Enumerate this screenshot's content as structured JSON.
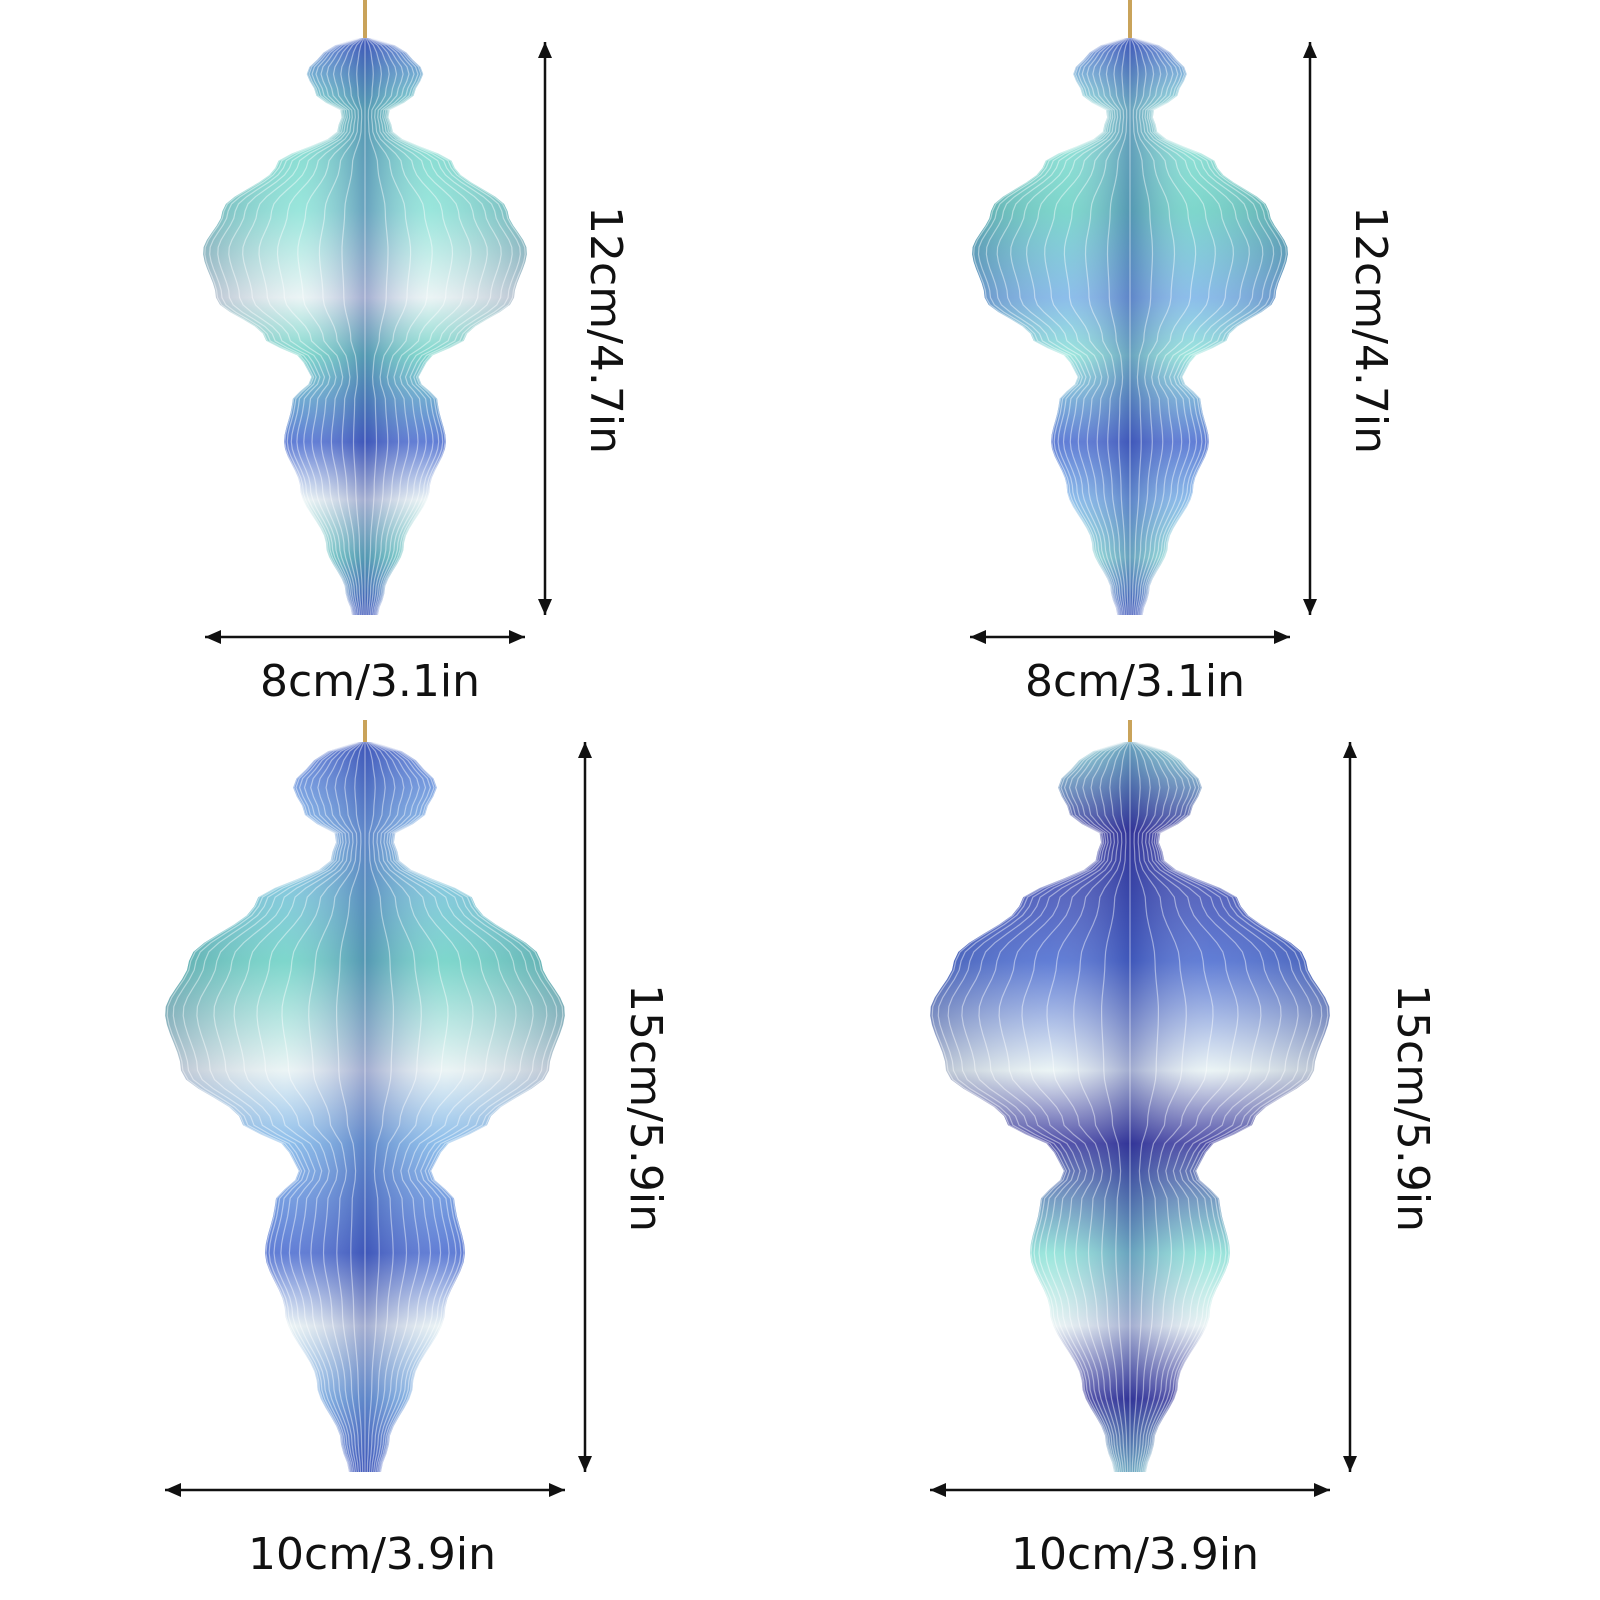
{
  "colors": {
    "teal": "#6fd2c6",
    "aqua": "#8fe3d8",
    "sky": "#7fb6e8",
    "blue": "#4f6fd1",
    "indigo": "#3b3a9e",
    "white": "#e9f3f4",
    "string": "#c9a35a",
    "arrow": "#111111"
  },
  "ornaments": [
    {
      "id": "top-left",
      "height_label": "12cm/4.7in",
      "width_label": "8cm/3.1in",
      "palette": [
        "teal",
        "aqua",
        "blue",
        "white"
      ]
    },
    {
      "id": "top-right",
      "height_label": "12cm/4.7in",
      "width_label": "8cm/3.1in",
      "palette": [
        "aqua",
        "teal",
        "blue",
        "sky"
      ]
    },
    {
      "id": "bottom-left",
      "height_label": "15cm/5.9in",
      "width_label": "10cm/3.9in",
      "palette": [
        "sky",
        "teal",
        "blue",
        "white"
      ]
    },
    {
      "id": "bottom-right",
      "height_label": "15cm/5.9in",
      "width_label": "10cm/3.9in",
      "palette": [
        "indigo",
        "blue",
        "aqua",
        "white"
      ]
    }
  ]
}
